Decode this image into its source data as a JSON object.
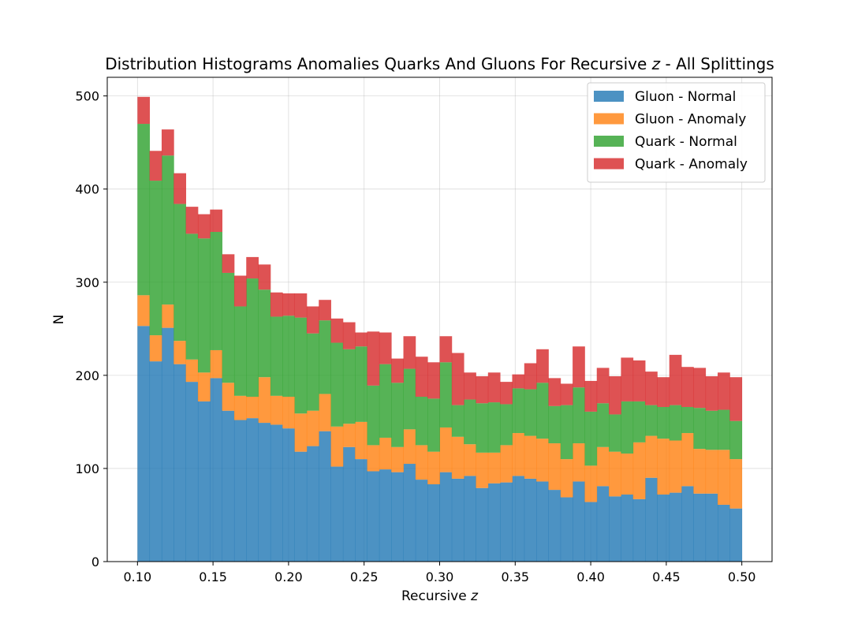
{
  "chart_data": {
    "type": "stacked_histogram",
    "title_prefix": "Distribution Histograms Anomalies Quarks And Gluons For Recursive ",
    "title_var": "z",
    "title_suffix": " - All Splittings",
    "xlabel_prefix": "Recursive ",
    "xlabel_var": "z",
    "ylabel": "N",
    "xlim": [
      0.08,
      0.52
    ],
    "ylim": [
      0,
      520
    ],
    "xticks": [
      "0.10",
      "0.15",
      "0.20",
      "0.25",
      "0.30",
      "0.35",
      "0.40",
      "0.45",
      "0.50"
    ],
    "yticks": [
      "0",
      "100",
      "200",
      "300",
      "400",
      "500"
    ],
    "grid": true,
    "legend_position": "top-right",
    "bin_range": [
      0.1,
      0.5
    ],
    "n_bins": 50,
    "series": [
      {
        "name": "Gluon - Normal",
        "color": "#1f77b4",
        "values": [
          253,
          215,
          251,
          212,
          193,
          172,
          197,
          162,
          152,
          154,
          149,
          147,
          143,
          118,
          124,
          140,
          102,
          123,
          110,
          97,
          99,
          96,
          105,
          88,
          83,
          96,
          89,
          92,
          79,
          84,
          85,
          92,
          89,
          86,
          77,
          69,
          86,
          64,
          81,
          70,
          72,
          67,
          90,
          72,
          74,
          81,
          73,
          73,
          61,
          57
        ]
      },
      {
        "name": "Gluon - Anomaly",
        "color": "#ff7f0e",
        "values": [
          33,
          28,
          25,
          25,
          24,
          31,
          30,
          30,
          26,
          23,
          49,
          31,
          34,
          41,
          38,
          40,
          43,
          25,
          40,
          28,
          34,
          27,
          37,
          37,
          35,
          48,
          45,
          34,
          38,
          33,
          40,
          46,
          46,
          46,
          50,
          41,
          41,
          39,
          42,
          48,
          44,
          61,
          45,
          60,
          56,
          57,
          48,
          47,
          59,
          53
        ]
      },
      {
        "name": "Quark - Normal",
        "color": "#2ca02c",
        "values": [
          184,
          166,
          160,
          147,
          135,
          144,
          127,
          118,
          96,
          127,
          94,
          85,
          87,
          103,
          83,
          79,
          90,
          80,
          81,
          64,
          79,
          69,
          65,
          52,
          57,
          70,
          34,
          48,
          53,
          54,
          44,
          48,
          50,
          60,
          40,
          58,
          60,
          58,
          47,
          40,
          56,
          44,
          33,
          34,
          38,
          28,
          44,
          42,
          43,
          41
        ]
      },
      {
        "name": "Quark - Anomaly",
        "color": "#d62728",
        "values": [
          29,
          32,
          28,
          33,
          29,
          26,
          24,
          20,
          33,
          23,
          27,
          26,
          24,
          26,
          29,
          22,
          26,
          29,
          15,
          58,
          34,
          26,
          35,
          43,
          39,
          28,
          56,
          29,
          29,
          32,
          24,
          15,
          28,
          36,
          30,
          23,
          44,
          33,
          38,
          41,
          47,
          44,
          36,
          32,
          54,
          43,
          43,
          37,
          40,
          47
        ]
      }
    ]
  }
}
